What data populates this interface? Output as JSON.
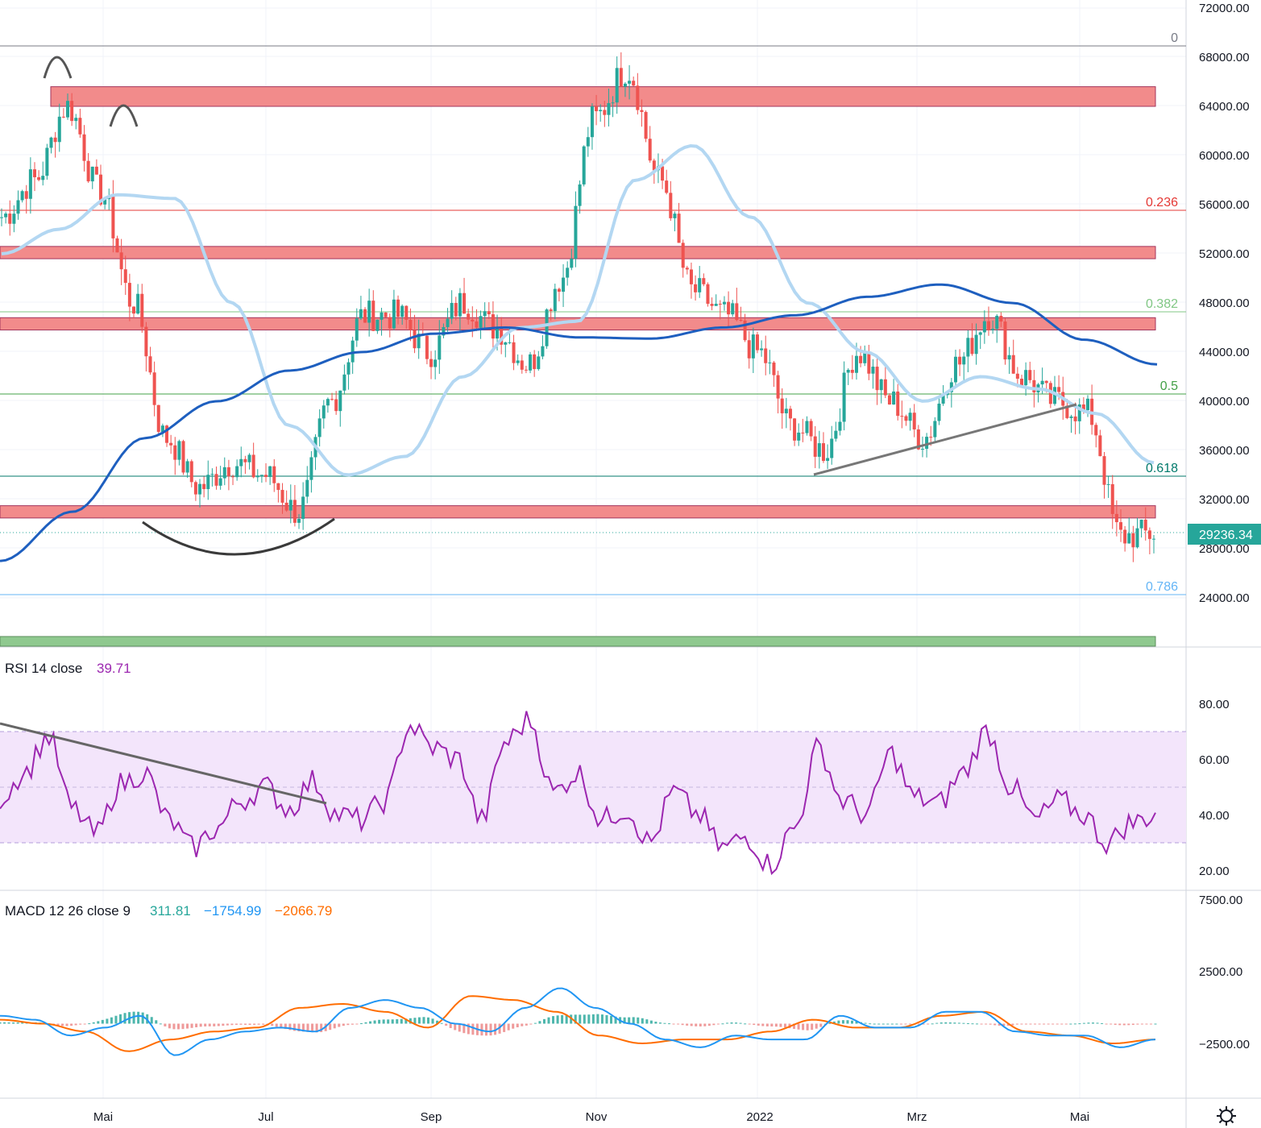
{
  "colors": {
    "up": "#26a69a",
    "down": "#ef5350",
    "zone": "#f28b8b",
    "zone_border": "#a3365d",
    "support_zone": "#8fc98f",
    "ma_long": "#1e5fbf",
    "ma_short": "#b3d7f2",
    "rsi": "#9c27b0",
    "rsi_band": "#f3e5fb",
    "macd": "#2196f3",
    "signal": "#ff6d00",
    "price_label_bg": "#26a69a",
    "pattern": "#555555"
  },
  "price_axis": {
    "labels": [
      "72000.00",
      "68000.00",
      "64000.00",
      "60000.00",
      "56000.00",
      "52000.00",
      "48000.00",
      "44000.00",
      "40000.00",
      "36000.00",
      "32000.00",
      "28000.00",
      "24000.00"
    ],
    "current_price": "29236.34"
  },
  "time_axis": {
    "labels": [
      "Mai",
      "Jul",
      "Sep",
      "Nov",
      "2022",
      "Mrz",
      "Mai"
    ]
  },
  "fib_labels": [
    {
      "text": "0",
      "color": "#787b86"
    },
    {
      "text": "0.236",
      "color": "#e53935"
    },
    {
      "text": "0.382",
      "color": "#81c784"
    },
    {
      "text": "0.5",
      "color": "#43a047"
    },
    {
      "text": "0.618",
      "color": "#00796b"
    },
    {
      "text": "0.786",
      "color": "#64b5f6"
    }
  ],
  "rsi": {
    "title": "RSI 14 close",
    "value": "39.71",
    "axis_labels": [
      "80.00",
      "60.00",
      "40.00",
      "20.00"
    ]
  },
  "macd": {
    "title": "MACD 12 26 close 9",
    "hist": "311.81",
    "macd": "−1754.99",
    "signal": "−2066.79",
    "axis_labels": [
      "7500.00",
      "2500.00",
      "−2500.00"
    ]
  },
  "settings_icon": "gear-icon",
  "chart_data": {
    "type": "candlestick",
    "title": "",
    "x": [
      "2021-03",
      "2021-04",
      "2021-05",
      "2021-06",
      "2021-07",
      "2021-08",
      "2021-09",
      "2021-10",
      "2021-11",
      "2021-12",
      "2022-01",
      "2022-02",
      "2022-03",
      "2022-04",
      "2022-05"
    ],
    "price_anchors": [
      55000,
      58000,
      64000,
      57000,
      48000,
      37000,
      33000,
      35000,
      34000,
      31000,
      40000,
      47000,
      47000,
      44000,
      48000,
      46000,
      43000,
      50000,
      63000,
      67000,
      58000,
      49000,
      47000,
      44000,
      38000,
      36000,
      44000,
      40000,
      37000,
      43000,
      47000,
      42000,
      40000,
      39000,
      29000,
      29236
    ],
    "fib_levels": {
      "0": 69000,
      "0.236": 55700,
      "0.382": 47100,
      "0.5": 40500,
      "0.618": 33700,
      "0.786": 24000
    },
    "resistance_zones": [
      [
        64000,
        65600
      ],
      [
        51600,
        52600
      ],
      [
        45800,
        46800
      ],
      [
        30500,
        31500
      ]
    ],
    "support_zone": [
      21000,
      21600
    ],
    "ma_short_anchors": [
      52000,
      54000,
      56800,
      56500,
      48000,
      38000,
      34000,
      35500,
      42000,
      46000,
      46500,
      58000,
      60800,
      55000,
      48000,
      44000,
      40000,
      42000,
      41000,
      39000,
      35000
    ],
    "ma_long_anchors": [
      27000,
      31000,
      37000,
      40000,
      42500,
      44000,
      45500,
      46000,
      45200,
      45100,
      46000,
      47000,
      48500,
      49500,
      48000,
      45000,
      43000
    ],
    "rsi_anchors": [
      46,
      55,
      68,
      42,
      33,
      51,
      55,
      38,
      28,
      35,
      45,
      50,
      42,
      52,
      40,
      38,
      45,
      72,
      64,
      60,
      38,
      66,
      74,
      48,
      55,
      38,
      42,
      30,
      48,
      40,
      28,
      32,
      22,
      35,
      64,
      45,
      40,
      62,
      46,
      44,
      55,
      70,
      50,
      38,
      45,
      40,
      30,
      37,
      40
    ],
    "macd_anchors": [
      1000,
      500,
      -1500,
      -500,
      1000,
      -4000,
      -2000,
      -1000,
      -500,
      -1000,
      2000,
      3000,
      2000,
      0,
      -1000,
      2000,
      4500,
      2000,
      0,
      -2000,
      -3000,
      -1500,
      -2000,
      -2000,
      1000,
      -500,
      -500,
      1500,
      1500,
      -1000,
      -1500,
      -1500,
      -3000,
      -2000
    ],
    "signal_anchors": [
      500,
      0,
      -1000,
      -3500,
      -2000,
      -1000,
      -500,
      2000,
      2500,
      1500,
      -500,
      3500,
      3000,
      1500,
      -1500,
      -2500,
      -2000,
      -2000,
      -1000,
      500,
      -500,
      -500,
      1000,
      1500,
      -1000,
      -1500,
      -2500,
      -2000
    ]
  }
}
